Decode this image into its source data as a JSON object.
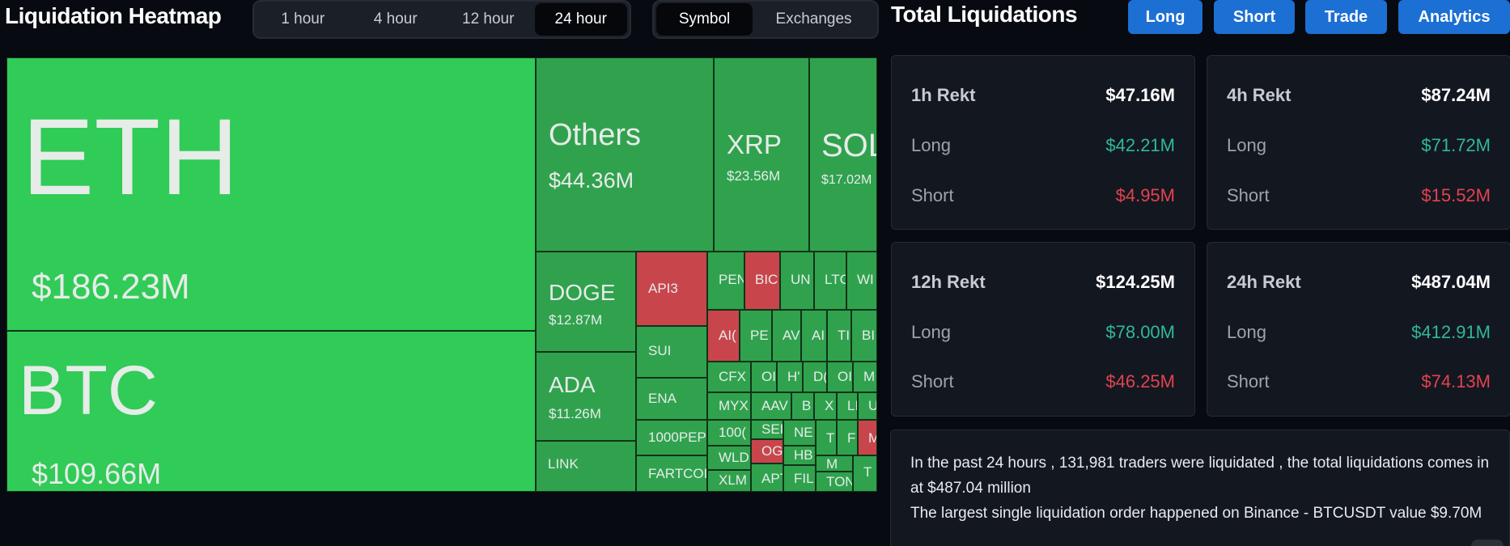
{
  "heatmap": {
    "title": "Liquidation Heatmap",
    "time_ranges": [
      "1 hour",
      "4 hour",
      "12 hour",
      "24 hour"
    ],
    "active_time_range": "24 hour",
    "views": [
      "Symbol",
      "Exchanges"
    ],
    "active_view": "Symbol",
    "colors": {
      "top": "#31cb58",
      "green": "#30a24e",
      "red": "#c9454c"
    },
    "tiles": {
      "eth": {
        "symbol": "ETH",
        "value": "$186.23M"
      },
      "btc": {
        "symbol": "BTC",
        "value": "$109.66M"
      },
      "others": {
        "symbol": "Others",
        "value": "$44.36M"
      },
      "xrp": {
        "symbol": "XRP",
        "value": "$23.56M"
      },
      "sol": {
        "symbol": "SOL",
        "value": "$17.02M"
      },
      "doge": {
        "symbol": "DOGE",
        "value": "$12.87M"
      },
      "ada": {
        "symbol": "ADA",
        "value": "$11.26M"
      },
      "link": {
        "symbol": "LINK"
      },
      "api3": {
        "symbol": "API3"
      },
      "sui": {
        "symbol": "SUI"
      },
      "ena": {
        "symbol": "ENA"
      },
      "pep1000": {
        "symbol": "1000PEP"
      },
      "fartcoin": {
        "symbol": "FARTCOI"
      },
      "pen": {
        "symbol": "PEN"
      },
      "bio": {
        "symbol": "BIC"
      },
      "uni": {
        "symbol": "UN"
      },
      "ltc": {
        "symbol": "LTC"
      },
      "wi": {
        "symbol": "WI"
      },
      "aic": {
        "symbol": "AI("
      },
      "pe": {
        "symbol": "PE"
      },
      "av": {
        "symbol": "AV"
      },
      "ai": {
        "symbol": "AI"
      },
      "ti": {
        "symbol": "TI"
      },
      "bi": {
        "symbol": "BI"
      },
      "cfx": {
        "symbol": "CFX"
      },
      "o1": {
        "symbol": "OI"
      },
      "h": {
        "symbol": "H'"
      },
      "d": {
        "symbol": "D("
      },
      "o2": {
        "symbol": "OI"
      },
      "m1": {
        "symbol": "M"
      },
      "myx": {
        "symbol": "MYX"
      },
      "aav": {
        "symbol": "AAV"
      },
      "b": {
        "symbol": "B"
      },
      "x": {
        "symbol": "X"
      },
      "l": {
        "symbol": "LI"
      },
      "u": {
        "symbol": "U"
      },
      "k1000": {
        "symbol": "100("
      },
      "sei": {
        "symbol": "SEI"
      },
      "ne": {
        "symbol": "NE"
      },
      "t1": {
        "symbol": "T"
      },
      "f": {
        "symbol": "F"
      },
      "m2": {
        "symbol": "M"
      },
      "wld": {
        "symbol": "WLD"
      },
      "og": {
        "symbol": "OGI"
      },
      "hb": {
        "symbol": "HB"
      },
      "xlm": {
        "symbol": "XLM"
      },
      "apt": {
        "symbol": "APT"
      },
      "fil": {
        "symbol": "FIL"
      },
      "m3": {
        "symbol": "M"
      },
      "t2": {
        "symbol": "T"
      },
      "ton": {
        "symbol": "TON"
      }
    }
  },
  "total": {
    "title": "Total Liquidations",
    "buttons": [
      "Long",
      "Short",
      "Trade",
      "Analytics"
    ],
    "colors": {
      "long": "#2fb999",
      "short": "#e2434f",
      "button": "#1c6fd3"
    },
    "cards": [
      {
        "label": "1h Rekt",
        "total": "$47.16M",
        "long_label": "Long",
        "long": "$42.21M",
        "short_label": "Short",
        "short": "$4.95M"
      },
      {
        "label": "4h Rekt",
        "total": "$87.24M",
        "long_label": "Long",
        "long": "$71.72M",
        "short_label": "Short",
        "short": "$15.52M"
      },
      {
        "label": "12h Rekt",
        "total": "$124.25M",
        "long_label": "Long",
        "long": "$78.00M",
        "short_label": "Short",
        "short": "$46.25M"
      },
      {
        "label": "24h Rekt",
        "total": "$487.04M",
        "long_label": "Long",
        "long": "$412.91M",
        "short_label": "Short",
        "short": "$74.13M"
      }
    ],
    "summary_line1": "In the past 24 hours , 131,981 traders were liquidated , the total liquidations comes in at $487.04 million",
    "summary_line2": "The largest single liquidation order happened on Binance - BTCUSDT value $9.70M"
  }
}
